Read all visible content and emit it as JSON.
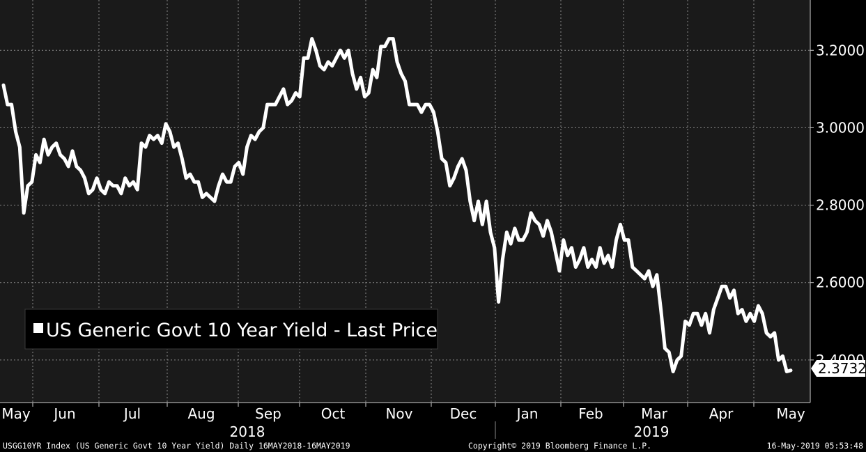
{
  "chart_data": {
    "type": "line",
    "title": "",
    "xlabel": "",
    "ylabel": "",
    "ylim": [
      2.29,
      3.33
    ],
    "y_axis_side": "right",
    "y_ticks": [
      2.4,
      2.6,
      2.8,
      3.0,
      3.2
    ],
    "y_tick_labels": [
      "2.4000",
      "2.6000",
      "2.8000",
      "3.0000",
      "3.2000"
    ],
    "grid": true,
    "legend_position": "bottom-left",
    "colors": {
      "background": "#000000",
      "plot_background": "#1a1a1a",
      "line": "#ffffff",
      "grid": "#8a8a8a"
    },
    "x_month_labels": [
      "May",
      "Jun",
      "Jul",
      "Aug",
      "Sep",
      "Oct",
      "Nov",
      "Dec",
      "Jan",
      "Feb",
      "Mar",
      "Apr",
      "May"
    ],
    "x_year_labels": [
      "2018",
      "2019"
    ],
    "last_value_label": "2.3732",
    "series": [
      {
        "name": "US Generic Govt 10 Year Yield - Last Price",
        "values": [
          3.11,
          3.06,
          3.06,
          2.99,
          2.95,
          2.78,
          2.85,
          2.86,
          2.93,
          2.91,
          2.97,
          2.93,
          2.95,
          2.96,
          2.93,
          2.92,
          2.9,
          2.94,
          2.9,
          2.89,
          2.87,
          2.83,
          2.84,
          2.87,
          2.84,
          2.83,
          2.86,
          2.85,
          2.85,
          2.83,
          2.87,
          2.85,
          2.86,
          2.84,
          2.96,
          2.95,
          2.98,
          2.97,
          2.98,
          2.96,
          3.01,
          2.99,
          2.95,
          2.96,
          2.92,
          2.87,
          2.88,
          2.86,
          2.86,
          2.82,
          2.83,
          2.82,
          2.81,
          2.85,
          2.88,
          2.86,
          2.86,
          2.9,
          2.91,
          2.88,
          2.95,
          2.98,
          2.97,
          2.99,
          3.0,
          3.06,
          3.06,
          3.06,
          3.08,
          3.1,
          3.06,
          3.07,
          3.09,
          3.08,
          3.18,
          3.18,
          3.23,
          3.2,
          3.16,
          3.15,
          3.17,
          3.16,
          3.18,
          3.2,
          3.18,
          3.2,
          3.14,
          3.1,
          3.13,
          3.08,
          3.09,
          3.15,
          3.13,
          3.21,
          3.21,
          3.23,
          3.23,
          3.17,
          3.14,
          3.12,
          3.06,
          3.06,
          3.06,
          3.04,
          3.06,
          3.06,
          3.04,
          2.99,
          2.92,
          2.91,
          2.85,
          2.87,
          2.9,
          2.92,
          2.89,
          2.81,
          2.76,
          2.81,
          2.75,
          2.81,
          2.73,
          2.69,
          2.55,
          2.66,
          2.73,
          2.7,
          2.74,
          2.71,
          2.71,
          2.73,
          2.78,
          2.76,
          2.75,
          2.72,
          2.76,
          2.73,
          2.68,
          2.63,
          2.71,
          2.67,
          2.69,
          2.64,
          2.66,
          2.69,
          2.64,
          2.66,
          2.64,
          2.69,
          2.65,
          2.67,
          2.64,
          2.71,
          2.75,
          2.71,
          2.71,
          2.64,
          2.63,
          2.62,
          2.61,
          2.63,
          2.59,
          2.62,
          2.53,
          2.43,
          2.42,
          2.37,
          2.4,
          2.41,
          2.5,
          2.49,
          2.52,
          2.52,
          2.49,
          2.52,
          2.47,
          2.53,
          2.56,
          2.59,
          2.59,
          2.56,
          2.58,
          2.52,
          2.53,
          2.5,
          2.52,
          2.5,
          2.54,
          2.52,
          2.47,
          2.46,
          2.47,
          2.4,
          2.41,
          2.37,
          2.3732
        ]
      }
    ]
  },
  "footer": {
    "left": "USGG10YR Index (US Generic Govt 10 Year Yield)  Daily 16MAY2018-16MAY2019",
    "center": "Copyright© 2019 Bloomberg Finance L.P.",
    "right": "16-May-2019 05:53:48"
  }
}
